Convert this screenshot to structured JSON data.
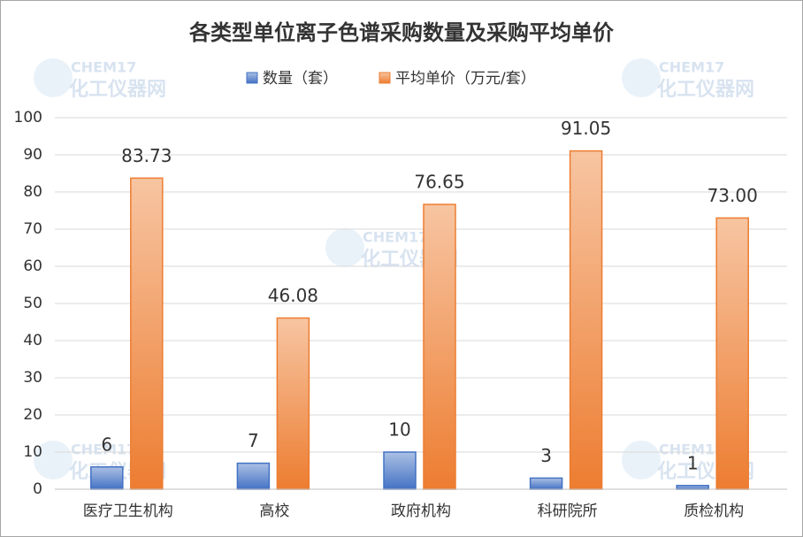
{
  "chart_data": {
    "type": "bar",
    "title": "各类型单位离子色谱采购数量及采购平均单价",
    "categories": [
      "医疗卫生机构",
      "高校",
      "政府机构",
      "科研院所",
      "质检机构"
    ],
    "series": [
      {
        "name": "数量（套）",
        "color": "#4472c4",
        "values": [
          6,
          7,
          10,
          3,
          1
        ]
      },
      {
        "name": "平均单价（万元/套）",
        "color": "#ed7d31",
        "values": [
          83.73,
          46.08,
          76.65,
          91.05,
          73.0
        ],
        "value_labels": [
          "83.73",
          "46.08",
          "76.65",
          "91.05",
          "73.00"
        ]
      }
    ],
    "ylim": [
      0,
      100
    ],
    "yticks": [
      0,
      10,
      20,
      30,
      40,
      50,
      60,
      70,
      80,
      90,
      100
    ],
    "grid": true,
    "legend": "top",
    "watermark": [
      "CHEM17",
      "化工仪器网"
    ]
  }
}
